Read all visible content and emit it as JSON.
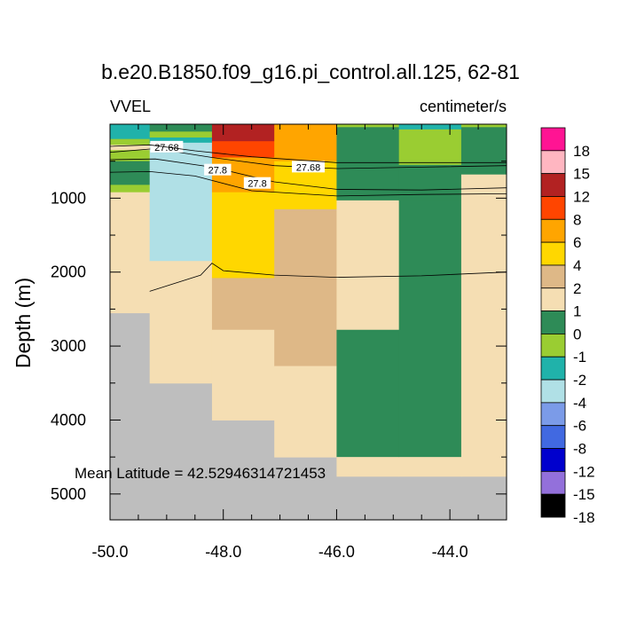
{
  "chart_data": {
    "type": "heatmap",
    "title": "b.e20.B1850.f09_g16.pi_control.all.125, 62-81",
    "left_label": "VVEL",
    "right_label": "centimeter/s",
    "ylabel": "Depth (m)",
    "annotation": "Mean Latitude = 42.52946314721453",
    "xlim": [
      -50.0,
      -43.0
    ],
    "ylim": [
      0,
      5350
    ],
    "x_ticks": [
      -50.0,
      -48.0,
      -46.0,
      -44.0
    ],
    "x_tick_labels": [
      "-50.0",
      "-48.0",
      "-46.0",
      "-44.0"
    ],
    "y_ticks": [
      1000,
      2000,
      3000,
      4000,
      5000
    ],
    "y_tick_labels": [
      "1000",
      "2000",
      "3000",
      "4000",
      "5000"
    ],
    "missing_color": "#bebebe",
    "legend": {
      "labels": [
        "18",
        "15",
        "12",
        "8",
        "6",
        "4",
        "2",
        "1",
        "0",
        "-1",
        "-2",
        "-4",
        "-6",
        "-8",
        "-12",
        "-15",
        "-18"
      ],
      "colors": [
        "#ff1493",
        "#ffb6c1",
        "#b22222",
        "#ff4500",
        "#ffa500",
        "#ffd700",
        "#deb887",
        "#f5deb3",
        "#2e8b57",
        "#9acd32",
        "#20b2aa",
        "#b0e0e6",
        "#7b9be8",
        "#4169e1",
        "#0000cd",
        "#9370db",
        "#000000"
      ]
    },
    "cells": [
      {
        "x0": -50.0,
        "x1": -49.3,
        "y0": 0,
        "y1": 200,
        "color": "#20b2aa"
      },
      {
        "x0": -50.0,
        "x1": -49.3,
        "y0": 200,
        "y1": 280,
        "color": "#9acd32"
      },
      {
        "x0": -50.0,
        "x1": -49.3,
        "y0": 280,
        "y1": 350,
        "color": "#f5deb3"
      },
      {
        "x0": -50.0,
        "x1": -49.3,
        "y0": 350,
        "y1": 500,
        "color": "#9acd32"
      },
      {
        "x0": -50.0,
        "x1": -49.3,
        "y0": 500,
        "y1": 820,
        "color": "#2e8b57"
      },
      {
        "x0": -50.0,
        "x1": -49.3,
        "y0": 820,
        "y1": 920,
        "color": "#9acd32"
      },
      {
        "x0": -50.0,
        "x1": -49.3,
        "y0": 920,
        "y1": 2550,
        "color": "#f5deb3"
      },
      {
        "x0": -49.3,
        "x1": -48.2,
        "y0": 0,
        "y1": 100,
        "color": "#2e8b57"
      },
      {
        "x0": -49.3,
        "x1": -48.2,
        "y0": 100,
        "y1": 180,
        "color": "#9acd32"
      },
      {
        "x0": -49.3,
        "x1": -48.2,
        "y0": 180,
        "y1": 250,
        "color": "#20b2aa"
      },
      {
        "x0": -49.3,
        "x1": -48.2,
        "y0": 250,
        "y1": 1850,
        "color": "#b0e0e6"
      },
      {
        "x0": -49.3,
        "x1": -48.2,
        "y0": 1850,
        "y1": 3500,
        "color": "#f5deb3"
      },
      {
        "x0": -48.2,
        "x1": -47.1,
        "y0": 0,
        "y1": 230,
        "color": "#b22222"
      },
      {
        "x0": -48.2,
        "x1": -47.1,
        "y0": 230,
        "y1": 450,
        "color": "#ff4500"
      },
      {
        "x0": -48.2,
        "x1": -47.1,
        "y0": 450,
        "y1": 920,
        "color": "#ffa500"
      },
      {
        "x0": -48.2,
        "x1": -47.1,
        "y0": 920,
        "y1": 2080,
        "color": "#ffd700"
      },
      {
        "x0": -48.2,
        "x1": -47.1,
        "y0": 2080,
        "y1": 2780,
        "color": "#deb887"
      },
      {
        "x0": -48.2,
        "x1": -47.1,
        "y0": 2780,
        "y1": 4000,
        "color": "#f5deb3"
      },
      {
        "x0": -47.1,
        "x1": -46.0,
        "y0": 0,
        "y1": 500,
        "color": "#ffa500"
      },
      {
        "x0": -47.1,
        "x1": -46.0,
        "y0": 500,
        "y1": 1150,
        "color": "#ffd700"
      },
      {
        "x0": -47.1,
        "x1": -46.0,
        "y0": 1150,
        "y1": 2080,
        "color": "#deb887"
      },
      {
        "x0": -47.1,
        "x1": -46.0,
        "y0": 2080,
        "y1": 3270,
        "color": "#deb887"
      },
      {
        "x0": -47.1,
        "x1": -46.0,
        "y0": 3270,
        "y1": 4500,
        "color": "#f5deb3"
      },
      {
        "x0": -46.0,
        "x1": -44.9,
        "y0": 0,
        "y1": 40,
        "color": "#9acd32"
      },
      {
        "x0": -46.0,
        "x1": -44.9,
        "y0": 40,
        "y1": 1030,
        "color": "#2e8b57"
      },
      {
        "x0": -46.0,
        "x1": -44.9,
        "y0": 1030,
        "y1": 2780,
        "color": "#f5deb3"
      },
      {
        "x0": -46.0,
        "x1": -44.9,
        "y0": 2780,
        "y1": 4500,
        "color": "#2e8b57"
      },
      {
        "x0": -46.0,
        "x1": -44.9,
        "y0": 4500,
        "y1": 4760,
        "color": "#f5deb3"
      },
      {
        "x0": -44.9,
        "x1": -43.8,
        "y0": 0,
        "y1": 70,
        "color": "#20b2aa"
      },
      {
        "x0": -44.9,
        "x1": -43.8,
        "y0": 70,
        "y1": 550,
        "color": "#9acd32"
      },
      {
        "x0": -44.9,
        "x1": -43.8,
        "y0": 550,
        "y1": 1030,
        "color": "#2e8b57"
      },
      {
        "x0": -44.9,
        "x1": -43.8,
        "y0": 1030,
        "y1": 4500,
        "color": "#2e8b57"
      },
      {
        "x0": -44.9,
        "x1": -43.8,
        "y0": 4500,
        "y1": 4760,
        "color": "#f5deb3"
      },
      {
        "x0": -43.8,
        "x1": -43.0,
        "y0": 0,
        "y1": 40,
        "color": "#9acd32"
      },
      {
        "x0": -43.8,
        "x1": -43.0,
        "y0": 40,
        "y1": 680,
        "color": "#2e8b57"
      },
      {
        "x0": -43.8,
        "x1": -43.0,
        "y0": 680,
        "y1": 4760,
        "color": "#f5deb3"
      }
    ],
    "contours": [
      {
        "label": "27.68",
        "points": [
          [
            -50.0,
            380
          ],
          [
            -49.2,
            330
          ],
          [
            -48.2,
            450
          ],
          [
            -47.1,
            560
          ],
          [
            -46.0,
            600
          ],
          [
            -44.5,
            580
          ],
          [
            -43.0,
            560
          ]
        ],
        "label_positions": [
          [
            -49.0,
            310
          ],
          [
            -46.5,
            580
          ]
        ]
      },
      {
        "label": "27.8",
        "points": [
          [
            -50.0,
            480
          ],
          [
            -49.2,
            470
          ],
          [
            -48.2,
            580
          ],
          [
            -47.1,
            780
          ],
          [
            -46.0,
            880
          ],
          [
            -44.5,
            890
          ],
          [
            -43.0,
            860
          ]
        ],
        "label_positions": [
          [
            -48.1,
            620
          ],
          [
            -47.4,
            800
          ]
        ]
      },
      {
        "label": "",
        "points": [
          [
            -50.0,
            300
          ],
          [
            -49.3,
            280
          ],
          [
            -48.5,
            360
          ],
          [
            -47.5,
            440
          ],
          [
            -46.0,
            520
          ],
          [
            -44.5,
            520
          ],
          [
            -43.0,
            520
          ]
        ],
        "label_positions": []
      },
      {
        "label": "",
        "points": [
          [
            -50.0,
            650
          ],
          [
            -49.3,
            640
          ],
          [
            -48.5,
            700
          ],
          [
            -47.5,
            900
          ],
          [
            -46.0,
            970
          ],
          [
            -44.5,
            950
          ],
          [
            -43.0,
            940
          ]
        ],
        "label_positions": []
      },
      {
        "label": "",
        "points": [
          [
            -49.3,
            2260
          ],
          [
            -48.4,
            2040
          ],
          [
            -48.2,
            1880
          ],
          [
            -48.0,
            1980
          ],
          [
            -47.1,
            2040
          ],
          [
            -46.0,
            2070
          ],
          [
            -44.5,
            2050
          ],
          [
            -43.0,
            2000
          ]
        ],
        "label_positions": []
      }
    ]
  }
}
